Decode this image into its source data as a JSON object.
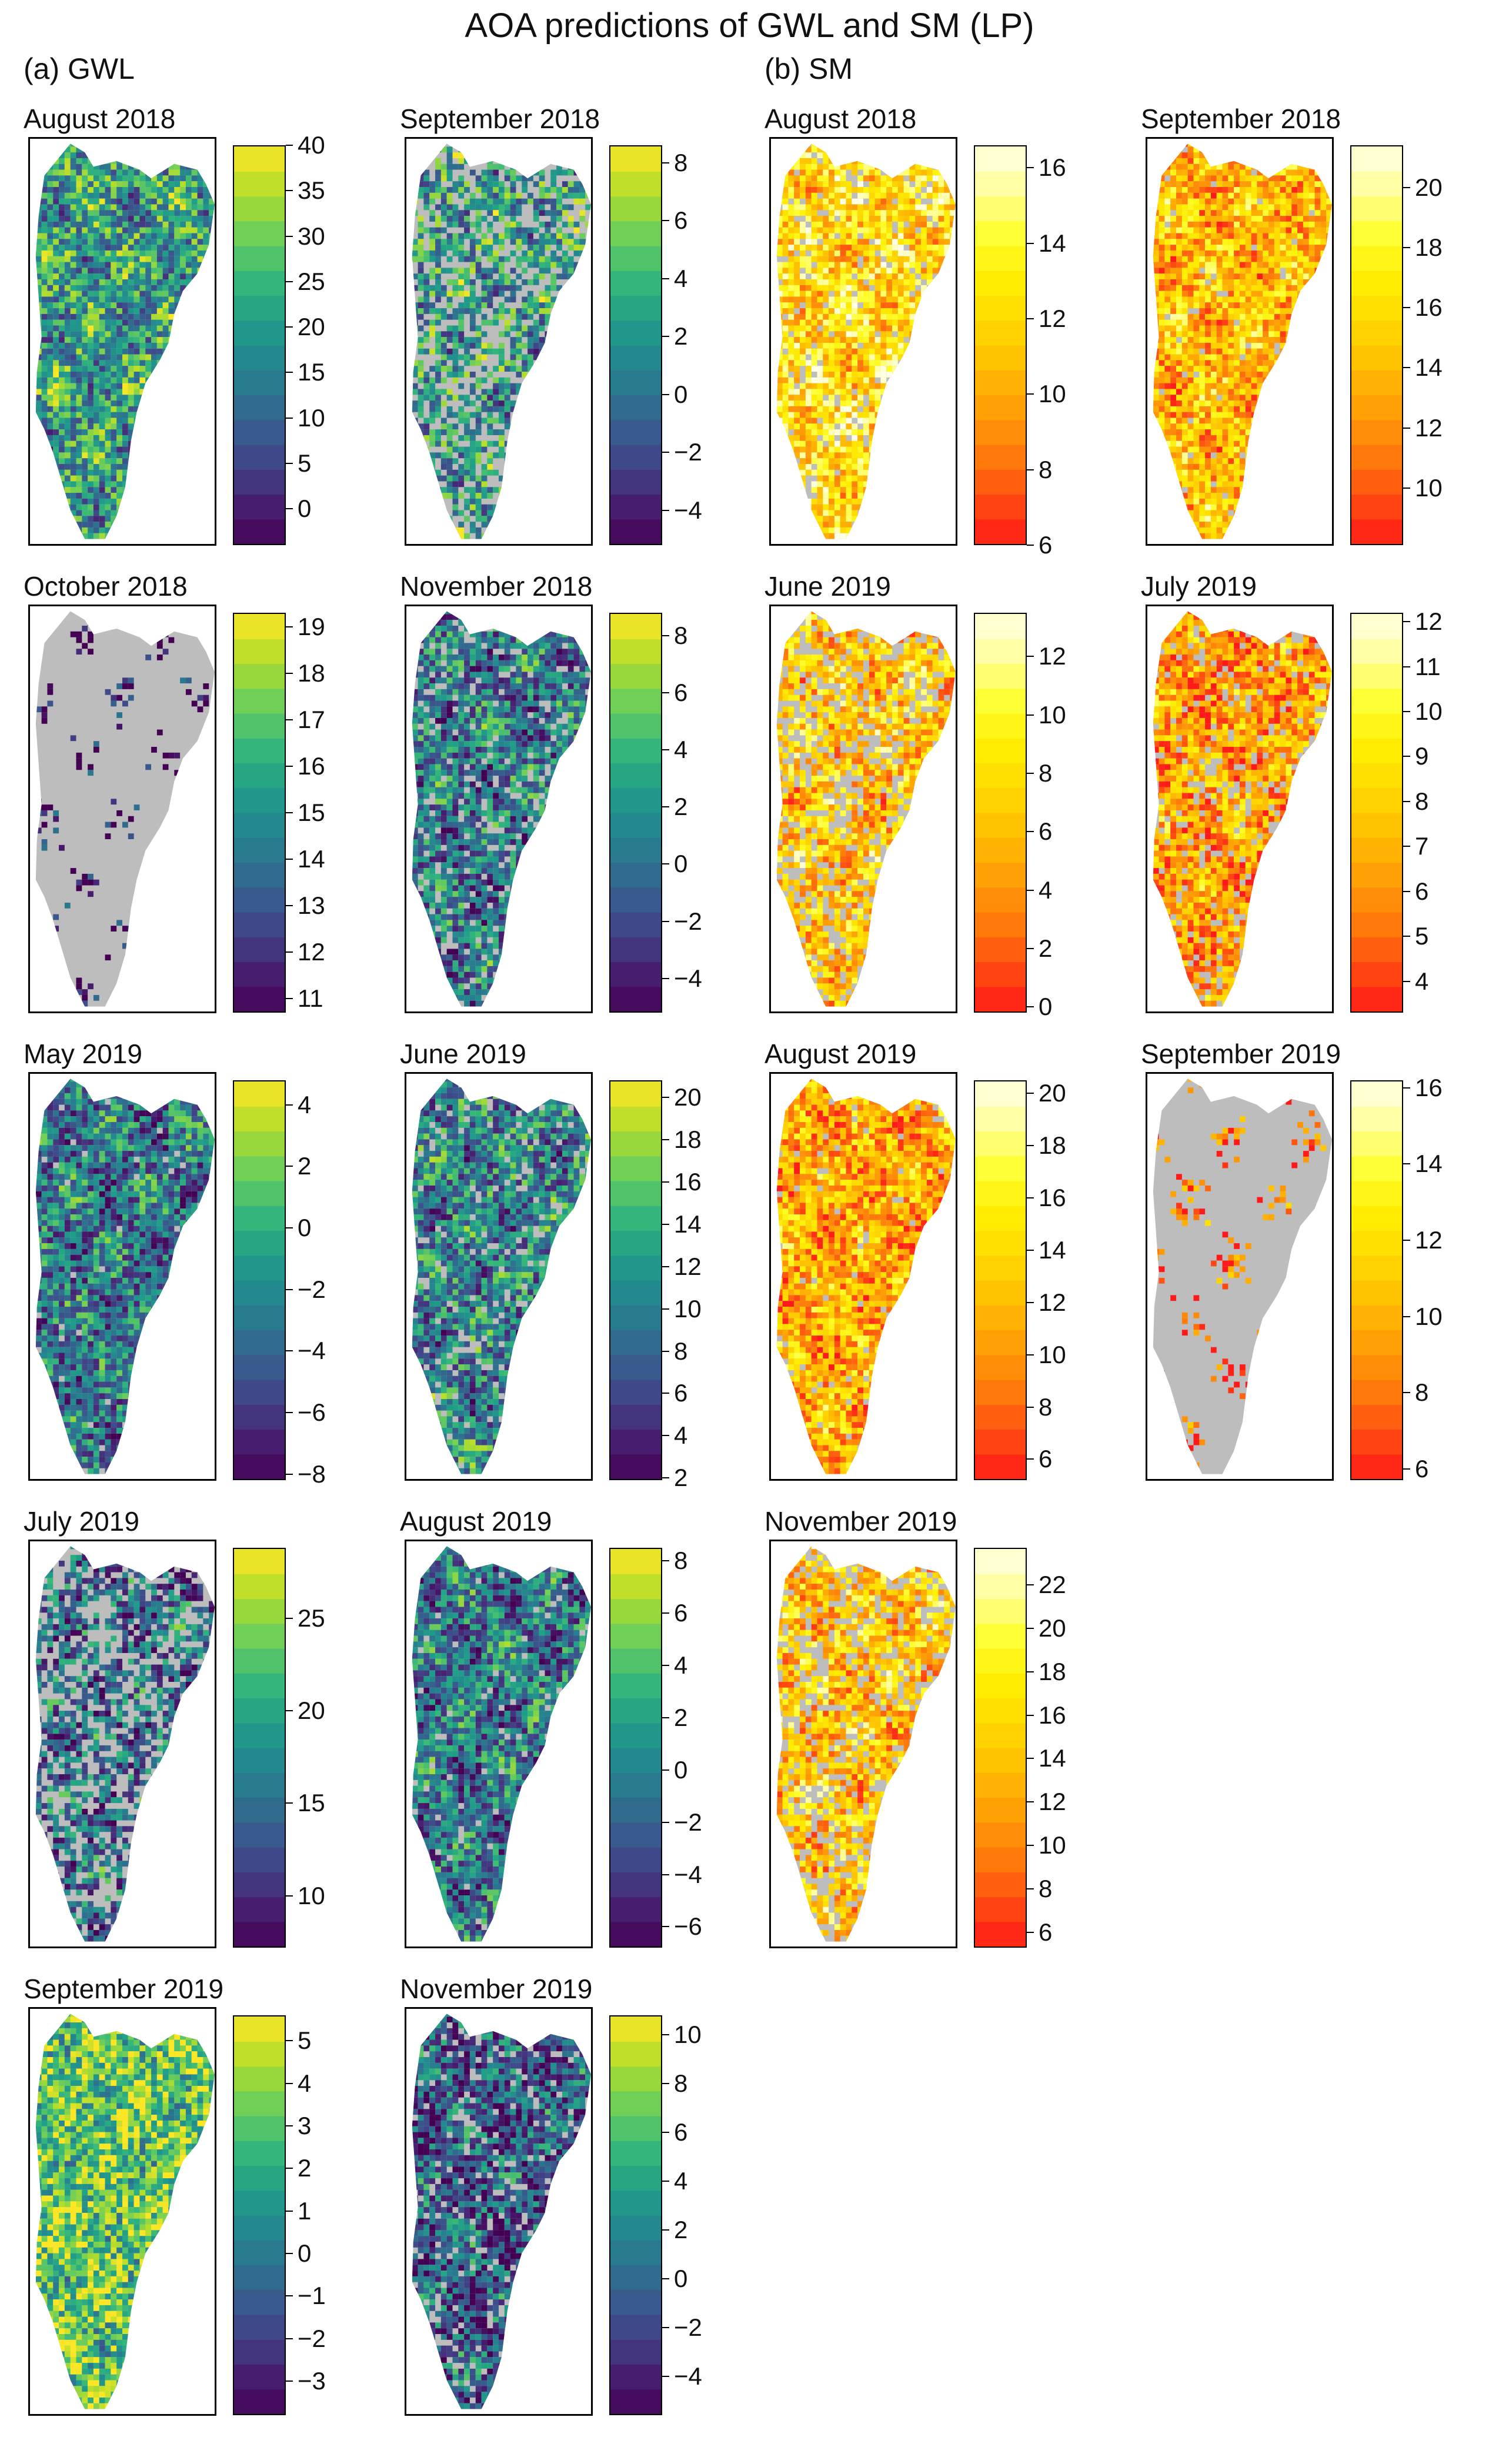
{
  "title": "AOA predictions of GWL and SM (LP)",
  "colors": {
    "viridis": [
      "#440154",
      "#482374",
      "#3f4a8a",
      "#31688e",
      "#26838f",
      "#1f9d8a",
      "#35b779",
      "#6ece58",
      "#b5de2b",
      "#fde725"
    ],
    "ylorrd_rev": [
      "#ff1a1a",
      "#ff4c10",
      "#ff7a0a",
      "#ff9d05",
      "#ffbd00",
      "#ffd800",
      "#ffee00",
      "#ffff33",
      "#ffff99",
      "#ffffe6"
    ],
    "aoa_gray": "#bdbdbd"
  },
  "chart_data": [
    {
      "section": "(a) GWL",
      "title": "August 2018",
      "type": "heatmap",
      "palette": "viridis",
      "scale_min": -4,
      "scale_max": 40,
      "ticks": [
        "40",
        "35",
        "30",
        "25",
        "20",
        "15",
        "10",
        "5",
        "0"
      ],
      "tick_values": [
        40,
        35,
        30,
        25,
        20,
        15,
        10,
        5,
        0
      ],
      "outside_aoa_fraction": 0.0,
      "mean_level": 0.55
    },
    {
      "section": "(a) GWL",
      "title": "September 2018",
      "type": "heatmap",
      "palette": "viridis",
      "scale_min": -5.2,
      "scale_max": 8.6,
      "ticks": [
        "8",
        "6",
        "4",
        "2",
        "0",
        "−2",
        "−4"
      ],
      "tick_values": [
        8,
        6,
        4,
        2,
        0,
        -2,
        -4
      ],
      "outside_aoa_fraction": 0.3,
      "mean_level": 0.55
    },
    {
      "section": "(b) SM",
      "title": "August 2018",
      "type": "heatmap",
      "palette": "ylorrd_rev",
      "scale_min": 6,
      "scale_max": 16.6,
      "ticks": [
        "16",
        "14",
        "12",
        "10",
        "8",
        "6"
      ],
      "tick_values": [
        16,
        14,
        12,
        10,
        8,
        6
      ],
      "outside_aoa_fraction": 0.1,
      "mean_level": 0.6
    },
    {
      "section": "(b) SM",
      "title": "September 2018",
      "type": "heatmap",
      "palette": "ylorrd_rev",
      "scale_min": 8.1,
      "scale_max": 21.4,
      "ticks": [
        "20",
        "18",
        "16",
        "14",
        "12",
        "10"
      ],
      "tick_values": [
        20,
        18,
        16,
        14,
        12,
        10
      ],
      "outside_aoa_fraction": 0.03,
      "mean_level": 0.45
    },
    {
      "section": "(a) GWL",
      "title": "October 2018",
      "type": "heatmap",
      "palette": "viridis",
      "scale_min": 10.7,
      "scale_max": 19.3,
      "ticks": [
        "19",
        "18",
        "17",
        "16",
        "15",
        "14",
        "13",
        "12",
        "11"
      ],
      "tick_values": [
        19,
        18,
        17,
        16,
        15,
        14,
        13,
        12,
        11
      ],
      "outside_aoa_fraction": 0.98,
      "mean_level": 0.15
    },
    {
      "section": "(a) GWL",
      "title": "November 2018",
      "type": "heatmap",
      "palette": "viridis",
      "scale_min": -5.2,
      "scale_max": 8.8,
      "ticks": [
        "8",
        "6",
        "4",
        "2",
        "0",
        "−2",
        "−4"
      ],
      "tick_values": [
        8,
        6,
        4,
        2,
        0,
        -2,
        -4
      ],
      "outside_aoa_fraction": 0.12,
      "mean_level": 0.4
    },
    {
      "section": "(b) SM",
      "title": "June 2019",
      "type": "heatmap",
      "palette": "ylorrd_rev",
      "scale_min": -0.2,
      "scale_max": 13.5,
      "ticks": [
        "12",
        "10",
        "8",
        "6",
        "4",
        "2",
        "0"
      ],
      "tick_values": [
        12,
        10,
        8,
        6,
        4,
        2,
        0
      ],
      "outside_aoa_fraction": 0.25,
      "mean_level": 0.5
    },
    {
      "section": "(b) SM",
      "title": "July 2019",
      "type": "heatmap",
      "palette": "ylorrd_rev",
      "scale_min": 3.3,
      "scale_max": 12.2,
      "ticks": [
        "12",
        "11",
        "10",
        "9",
        "8",
        "7",
        "6",
        "5",
        "4"
      ],
      "tick_values": [
        12,
        11,
        10,
        9,
        8,
        7,
        6,
        5,
        4
      ],
      "outside_aoa_fraction": 0.12,
      "mean_level": 0.35
    },
    {
      "section": "(a) GWL",
      "title": "May 2019",
      "type": "heatmap",
      "palette": "viridis",
      "scale_min": -8.2,
      "scale_max": 4.8,
      "ticks": [
        "4",
        "2",
        "0",
        "−2",
        "−4",
        "−6",
        "−8"
      ],
      "tick_values": [
        4,
        2,
        0,
        -2,
        -4,
        -6,
        -8
      ],
      "outside_aoa_fraction": 0.02,
      "mean_level": 0.4
    },
    {
      "section": "(a) GWL",
      "title": "June 2019",
      "type": "heatmap",
      "palette": "viridis",
      "scale_min": 1.9,
      "scale_max": 20.8,
      "ticks": [
        "20",
        "18",
        "16",
        "14",
        "12",
        "10",
        "8",
        "6",
        "4",
        "2"
      ],
      "tick_values": [
        20,
        18,
        16,
        14,
        12,
        10,
        8,
        6,
        4,
        2
      ],
      "outside_aoa_fraction": 0.1,
      "mean_level": 0.45
    },
    {
      "section": "(b) SM",
      "title": "August 2019",
      "type": "heatmap",
      "palette": "ylorrd_rev",
      "scale_min": 5.2,
      "scale_max": 20.5,
      "ticks": [
        "20",
        "18",
        "16",
        "14",
        "12",
        "10",
        "8",
        "6"
      ],
      "tick_values": [
        20,
        18,
        16,
        14,
        12,
        10,
        8,
        6
      ],
      "outside_aoa_fraction": 0.03,
      "mean_level": 0.4
    },
    {
      "section": "(b) SM",
      "title": "September 2019",
      "type": "heatmap",
      "palette": "ylorrd_rev",
      "scale_min": 5.7,
      "scale_max": 16.2,
      "ticks": [
        "16",
        "14",
        "12",
        "10",
        "8",
        "6"
      ],
      "tick_values": [
        16,
        14,
        12,
        10,
        8,
        6
      ],
      "outside_aoa_fraction": 0.99,
      "mean_level": 0.3
    },
    {
      "section": "(a) GWL",
      "title": "July 2019",
      "type": "heatmap",
      "palette": "viridis",
      "scale_min": 7.2,
      "scale_max": 28.8,
      "ticks": [
        "25",
        "20",
        "15",
        "10"
      ],
      "tick_values": [
        25,
        20,
        15,
        10
      ],
      "outside_aoa_fraction": 0.35,
      "mean_level": 0.35
    },
    {
      "section": "(a) GWL",
      "title": "August 2019",
      "type": "heatmap",
      "palette": "viridis",
      "scale_min": -6.8,
      "scale_max": 8.5,
      "ticks": [
        "8",
        "6",
        "4",
        "2",
        "0",
        "−2",
        "−4",
        "−6"
      ],
      "tick_values": [
        8,
        6,
        4,
        2,
        0,
        -2,
        -4,
        -6
      ],
      "outside_aoa_fraction": 0.05,
      "mean_level": 0.4
    },
    {
      "section": "(b) SM",
      "title": "November 2019",
      "type": "heatmap",
      "palette": "ylorrd_rev",
      "scale_min": 5.3,
      "scale_max": 23.7,
      "ticks": [
        "22",
        "20",
        "18",
        "16",
        "14",
        "12",
        "10",
        "8",
        "6"
      ],
      "tick_values": [
        22,
        20,
        18,
        16,
        14,
        12,
        10,
        8,
        6
      ],
      "outside_aoa_fraction": 0.25,
      "mean_level": 0.5
    },
    {
      "section": "(a) GWL",
      "title": "September 2019",
      "type": "heatmap",
      "palette": "viridis",
      "scale_min": -3.8,
      "scale_max": 5.6,
      "ticks": [
        "5",
        "4",
        "3",
        "2",
        "1",
        "0",
        "−1",
        "−2",
        "−3"
      ],
      "tick_values": [
        5,
        4,
        3,
        2,
        1,
        0,
        -1,
        -2,
        -3
      ],
      "outside_aoa_fraction": 0.0,
      "mean_level": 0.75
    },
    {
      "section": "(a) GWL",
      "title": "November 2019",
      "type": "heatmap",
      "palette": "viridis",
      "scale_min": -5.6,
      "scale_max": 10.8,
      "ticks": [
        "10",
        "8",
        "6",
        "4",
        "2",
        "0",
        "−2",
        "−4"
      ],
      "tick_values": [
        10,
        8,
        6,
        4,
        2,
        0,
        -2,
        -4
      ],
      "outside_aoa_fraction": 0.12,
      "mean_level": 0.3
    }
  ],
  "sections": {
    "gwl_label": "(a) GWL",
    "sm_label": "(b) SM"
  }
}
